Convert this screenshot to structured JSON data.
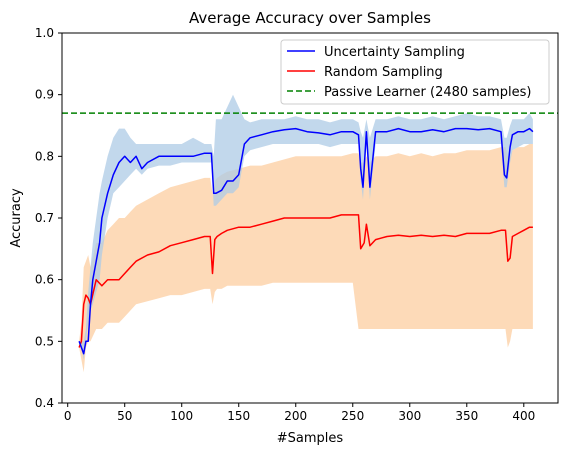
{
  "chart_data": {
    "type": "line",
    "title": "Average Accuracy over Samples",
    "xlabel": "#Samples",
    "ylabel": "Accuracy",
    "xlim": [
      -5,
      430
    ],
    "ylim": [
      0.4,
      1.0
    ],
    "xticks": [
      "0",
      "50",
      "100",
      "150",
      "200",
      "250",
      "300",
      "350",
      "400"
    ],
    "xtick_values": [
      0,
      50,
      100,
      150,
      200,
      250,
      300,
      350,
      400
    ],
    "yticks": [
      "0.4",
      "0.5",
      "0.6",
      "0.7",
      "0.8",
      "0.9",
      "1.0"
    ],
    "ytick_values": [
      0.4,
      0.5,
      0.6,
      0.7,
      0.8,
      0.9,
      1.0
    ],
    "grid": false,
    "legend_position": "top-right",
    "hline": {
      "name": "Passive Learner (2480 samples)",
      "y": 0.87,
      "color": "#008000",
      "style": "dashed"
    },
    "series": [
      {
        "name": "Uncertainty Sampling",
        "color": "#0000ff",
        "band_color": "#aecbe6",
        "x": [
          10,
          12,
          14,
          16,
          18,
          20,
          22,
          25,
          28,
          30,
          35,
          40,
          45,
          50,
          55,
          60,
          65,
          70,
          80,
          90,
          100,
          110,
          120,
          126,
          128,
          130,
          135,
          140,
          145,
          150,
          155,
          160,
          170,
          180,
          190,
          200,
          210,
          220,
          230,
          240,
          250,
          255,
          257,
          259,
          262,
          265,
          270,
          280,
          290,
          300,
          310,
          320,
          330,
          340,
          350,
          360,
          370,
          380,
          383,
          385,
          388,
          390,
          395,
          400,
          405,
          408
        ],
        "y": [
          0.5,
          0.49,
          0.48,
          0.5,
          0.5,
          0.56,
          0.6,
          0.63,
          0.66,
          0.7,
          0.74,
          0.77,
          0.79,
          0.8,
          0.79,
          0.8,
          0.78,
          0.79,
          0.8,
          0.8,
          0.8,
          0.8,
          0.805,
          0.805,
          0.74,
          0.74,
          0.745,
          0.76,
          0.76,
          0.77,
          0.82,
          0.83,
          0.835,
          0.84,
          0.843,
          0.845,
          0.84,
          0.838,
          0.835,
          0.84,
          0.84,
          0.835,
          0.78,
          0.75,
          0.84,
          0.75,
          0.84,
          0.84,
          0.845,
          0.84,
          0.84,
          0.843,
          0.84,
          0.845,
          0.845,
          0.843,
          0.845,
          0.84,
          0.77,
          0.765,
          0.815,
          0.835,
          0.84,
          0.84,
          0.845,
          0.84
        ],
        "lower": [
          0.5,
          0.49,
          0.47,
          0.5,
          0.53,
          0.55,
          0.56,
          0.58,
          0.6,
          0.64,
          0.7,
          0.74,
          0.75,
          0.76,
          0.77,
          0.78,
          0.77,
          0.78,
          0.785,
          0.785,
          0.79,
          0.79,
          0.79,
          0.79,
          0.72,
          0.72,
          0.73,
          0.74,
          0.74,
          0.75,
          0.8,
          0.81,
          0.815,
          0.82,
          0.82,
          0.82,
          0.82,
          0.82,
          0.815,
          0.82,
          0.82,
          0.82,
          0.76,
          0.73,
          0.82,
          0.73,
          0.82,
          0.82,
          0.82,
          0.82,
          0.82,
          0.82,
          0.82,
          0.82,
          0.82,
          0.82,
          0.82,
          0.82,
          0.75,
          0.75,
          0.79,
          0.81,
          0.815,
          0.82,
          0.82,
          0.82
        ],
        "upper": [
          0.5,
          0.5,
          0.5,
          0.52,
          0.58,
          0.62,
          0.66,
          0.7,
          0.74,
          0.76,
          0.8,
          0.83,
          0.845,
          0.845,
          0.83,
          0.82,
          0.82,
          0.82,
          0.82,
          0.82,
          0.82,
          0.83,
          0.82,
          0.82,
          0.8,
          0.86,
          0.86,
          0.88,
          0.9,
          0.88,
          0.86,
          0.855,
          0.86,
          0.86,
          0.86,
          0.865,
          0.86,
          0.86,
          0.855,
          0.86,
          0.86,
          0.855,
          0.84,
          0.83,
          0.86,
          0.83,
          0.86,
          0.86,
          0.865,
          0.86,
          0.86,
          0.865,
          0.86,
          0.865,
          0.87,
          0.865,
          0.865,
          0.86,
          0.83,
          0.83,
          0.85,
          0.86,
          0.86,
          0.86,
          0.87,
          0.86
        ]
      },
      {
        "name": "Random Sampling",
        "color": "#ff0000",
        "band_color": "#fdd3ab",
        "x": [
          10,
          12,
          14,
          16,
          18,
          20,
          25,
          30,
          35,
          40,
          45,
          50,
          55,
          60,
          70,
          80,
          90,
          100,
          110,
          120,
          125,
          127,
          129,
          131,
          135,
          140,
          150,
          160,
          170,
          180,
          190,
          200,
          210,
          220,
          230,
          240,
          250,
          255,
          257,
          260,
          262,
          265,
          270,
          280,
          290,
          300,
          310,
          320,
          330,
          340,
          350,
          360,
          370,
          380,
          384,
          386,
          388,
          390,
          395,
          400,
          405,
          408
        ],
        "y": [
          0.49,
          0.5,
          0.56,
          0.575,
          0.57,
          0.56,
          0.6,
          0.59,
          0.6,
          0.6,
          0.6,
          0.61,
          0.62,
          0.63,
          0.64,
          0.645,
          0.655,
          0.66,
          0.665,
          0.67,
          0.67,
          0.61,
          0.665,
          0.67,
          0.675,
          0.68,
          0.685,
          0.685,
          0.69,
          0.695,
          0.7,
          0.7,
          0.7,
          0.7,
          0.7,
          0.705,
          0.705,
          0.705,
          0.65,
          0.66,
          0.69,
          0.655,
          0.665,
          0.67,
          0.672,
          0.67,
          0.672,
          0.67,
          0.672,
          0.67,
          0.675,
          0.675,
          0.675,
          0.68,
          0.68,
          0.63,
          0.635,
          0.67,
          0.675,
          0.68,
          0.685,
          0.685
        ],
        "lower": [
          0.49,
          0.47,
          0.45,
          0.49,
          0.5,
          0.5,
          0.52,
          0.52,
          0.53,
          0.53,
          0.53,
          0.54,
          0.55,
          0.56,
          0.565,
          0.57,
          0.575,
          0.575,
          0.58,
          0.585,
          0.585,
          0.56,
          0.58,
          0.585,
          0.585,
          0.59,
          0.59,
          0.59,
          0.59,
          0.595,
          0.595,
          0.595,
          0.595,
          0.595,
          0.595,
          0.595,
          0.595,
          0.52,
          0.52,
          0.52,
          0.52,
          0.52,
          0.52,
          0.52,
          0.52,
          0.52,
          0.52,
          0.52,
          0.52,
          0.52,
          0.52,
          0.52,
          0.52,
          0.52,
          0.52,
          0.49,
          0.5,
          0.52,
          0.52,
          0.52,
          0.52,
          0.52
        ],
        "upper": [
          0.5,
          0.53,
          0.62,
          0.63,
          0.64,
          0.62,
          0.66,
          0.66,
          0.68,
          0.69,
          0.7,
          0.7,
          0.71,
          0.72,
          0.73,
          0.74,
          0.75,
          0.755,
          0.76,
          0.765,
          0.765,
          0.74,
          0.76,
          0.765,
          0.77,
          0.775,
          0.78,
          0.785,
          0.785,
          0.79,
          0.795,
          0.8,
          0.8,
          0.8,
          0.8,
          0.8,
          0.805,
          0.805,
          0.79,
          0.79,
          0.8,
          0.79,
          0.8,
          0.8,
          0.805,
          0.8,
          0.805,
          0.8,
          0.805,
          0.805,
          0.81,
          0.81,
          0.81,
          0.815,
          0.815,
          0.8,
          0.8,
          0.81,
          0.815,
          0.815,
          0.82,
          0.82
        ]
      }
    ]
  }
}
